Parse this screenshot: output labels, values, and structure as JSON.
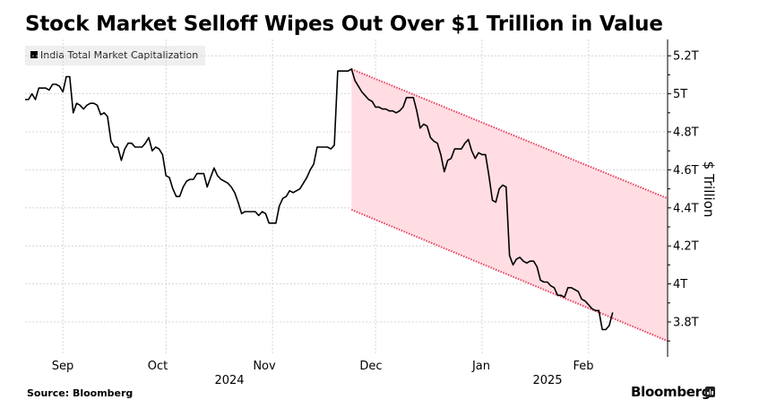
{
  "header": {
    "title": "Stock Market Selloff Wipes Out Over $1 Trillion in Value"
  },
  "legend": {
    "label": "India Total Market Capitalization"
  },
  "footer": {
    "source": "Source: Bloomberg",
    "brand": "Bloomberg"
  },
  "colors": {
    "line": "#000000",
    "channel_fill": "#ffdde3",
    "channel_edge": "#e8405e",
    "grid": "#cccccc"
  },
  "chart_data": {
    "type": "line",
    "title": "Stock Market Selloff Wipes Out Over $1 Trillion in Value",
    "xlabel": "",
    "ylabel": "$ Trillion",
    "ylim": [
      3.65,
      5.25
    ],
    "y_ticks": [
      5.2,
      5.0,
      4.8,
      4.6,
      4.4,
      4.2,
      4.0,
      3.8
    ],
    "y_tick_labels": [
      "5.2T",
      "5T",
      "4.8T",
      "4.6T",
      "4.4T",
      "4.2T",
      "4T",
      "3.8T"
    ],
    "x_months": [
      "Sep",
      "Oct",
      "Nov",
      "Dec",
      "Jan",
      "Feb"
    ],
    "x_years": [
      "2024",
      "2025"
    ],
    "x_range_days": [
      0,
      187
    ],
    "month_start_days": [
      11,
      41,
      72,
      102,
      133,
      164
    ],
    "grid": true,
    "legend_position": "top-left",
    "series": [
      {
        "name": "India Total Market Capitalization",
        "points": [
          [
            0,
            4.97
          ],
          [
            1,
            4.97
          ],
          [
            2,
            5.0
          ],
          [
            3,
            4.97
          ],
          [
            4,
            5.03
          ],
          [
            5,
            5.03
          ],
          [
            6,
            5.03
          ],
          [
            7,
            5.02
          ],
          [
            8,
            5.05
          ],
          [
            9,
            5.05
          ],
          [
            10,
            5.04
          ],
          [
            11,
            5.01
          ],
          [
            12,
            5.09
          ],
          [
            13,
            5.09
          ],
          [
            14,
            4.9
          ],
          [
            15,
            4.95
          ],
          [
            16,
            4.94
          ],
          [
            17,
            4.92
          ],
          [
            18,
            4.94
          ],
          [
            19,
            4.95
          ],
          [
            20,
            4.95
          ],
          [
            21,
            4.94
          ],
          [
            22,
            4.89
          ],
          [
            23,
            4.9
          ],
          [
            24,
            4.88
          ],
          [
            25,
            4.75
          ],
          [
            26,
            4.72
          ],
          [
            27,
            4.72
          ],
          [
            28,
            4.65
          ],
          [
            29,
            4.71
          ],
          [
            30,
            4.74
          ],
          [
            31,
            4.74
          ],
          [
            32,
            4.72
          ],
          [
            33,
            4.72
          ],
          [
            34,
            4.72
          ],
          [
            35,
            4.74
          ],
          [
            36,
            4.77
          ],
          [
            37,
            4.7
          ],
          [
            38,
            4.72
          ],
          [
            39,
            4.71
          ],
          [
            40,
            4.68
          ],
          [
            41,
            4.57
          ],
          [
            42,
            4.56
          ],
          [
            43,
            4.5
          ],
          [
            44,
            4.46
          ],
          [
            45,
            4.46
          ],
          [
            46,
            4.51
          ],
          [
            47,
            4.54
          ],
          [
            48,
            4.55
          ],
          [
            49,
            4.55
          ],
          [
            50,
            4.58
          ],
          [
            51,
            4.58
          ],
          [
            52,
            4.58
          ],
          [
            53,
            4.51
          ],
          [
            54,
            4.56
          ],
          [
            55,
            4.61
          ],
          [
            56,
            4.57
          ],
          [
            57,
            4.55
          ],
          [
            58,
            4.54
          ],
          [
            59,
            4.53
          ],
          [
            60,
            4.51
          ],
          [
            61,
            4.48
          ],
          [
            62,
            4.43
          ],
          [
            63,
            4.37
          ],
          [
            64,
            4.38
          ],
          [
            65,
            4.38
          ],
          [
            66,
            4.38
          ],
          [
            67,
            4.38
          ],
          [
            68,
            4.36
          ],
          [
            69,
            4.38
          ],
          [
            70,
            4.37
          ],
          [
            71,
            4.32
          ],
          [
            72,
            4.32
          ],
          [
            73,
            4.32
          ],
          [
            74,
            4.41
          ],
          [
            75,
            4.45
          ],
          [
            76,
            4.46
          ],
          [
            77,
            4.49
          ],
          [
            78,
            4.48
          ],
          [
            79,
            4.49
          ],
          [
            80,
            4.5
          ],
          [
            81,
            4.53
          ],
          [
            82,
            4.56
          ],
          [
            83,
            4.6
          ],
          [
            84,
            4.63
          ],
          [
            85,
            4.72
          ],
          [
            86,
            4.72
          ],
          [
            87,
            4.72
          ],
          [
            88,
            4.72
          ],
          [
            89,
            4.71
          ],
          [
            90,
            4.73
          ],
          [
            91,
            5.12
          ],
          [
            92,
            5.12
          ],
          [
            93,
            5.12
          ],
          [
            94,
            5.12
          ],
          [
            95,
            5.13
          ],
          [
            96,
            5.07
          ],
          [
            97,
            5.04
          ],
          [
            98,
            5.01
          ],
          [
            99,
            4.99
          ],
          [
            100,
            4.97
          ],
          [
            101,
            4.96
          ],
          [
            102,
            4.93
          ],
          [
            103,
            4.93
          ],
          [
            104,
            4.92
          ],
          [
            105,
            4.92
          ],
          [
            106,
            4.91
          ],
          [
            107,
            4.91
          ],
          [
            108,
            4.9
          ],
          [
            109,
            4.91
          ],
          [
            110,
            4.93
          ],
          [
            111,
            4.98
          ],
          [
            112,
            4.98
          ],
          [
            113,
            4.98
          ],
          [
            114,
            4.91
          ],
          [
            115,
            4.82
          ],
          [
            116,
            4.84
          ],
          [
            117,
            4.83
          ],
          [
            118,
            4.77
          ],
          [
            119,
            4.75
          ],
          [
            120,
            4.74
          ],
          [
            121,
            4.68
          ],
          [
            122,
            4.59
          ],
          [
            123,
            4.65
          ],
          [
            124,
            4.66
          ],
          [
            125,
            4.71
          ],
          [
            126,
            4.71
          ],
          [
            127,
            4.71
          ],
          [
            128,
            4.74
          ],
          [
            129,
            4.76
          ],
          [
            130,
            4.7
          ],
          [
            131,
            4.66
          ],
          [
            132,
            4.69
          ],
          [
            133,
            4.68
          ],
          [
            134,
            4.68
          ],
          [
            135,
            4.57
          ],
          [
            136,
            4.44
          ],
          [
            137,
            4.43
          ],
          [
            138,
            4.5
          ],
          [
            139,
            4.52
          ],
          [
            140,
            4.51
          ],
          [
            141,
            4.15
          ],
          [
            142,
            4.1
          ],
          [
            143,
            4.13
          ],
          [
            144,
            4.14
          ],
          [
            145,
            4.12
          ],
          [
            146,
            4.11
          ],
          [
            147,
            4.12
          ],
          [
            148,
            4.12
          ],
          [
            149,
            4.09
          ],
          [
            150,
            4.02
          ],
          [
            151,
            4.01
          ],
          [
            152,
            4.01
          ],
          [
            153,
            3.99
          ],
          [
            154,
            3.98
          ],
          [
            155,
            3.94
          ],
          [
            156,
            3.94
          ],
          [
            157,
            3.93
          ],
          [
            158,
            3.98
          ],
          [
            159,
            3.98
          ],
          [
            160,
            3.97
          ],
          [
            161,
            3.96
          ],
          [
            162,
            3.92
          ],
          [
            163,
            3.91
          ],
          [
            164,
            3.89
          ],
          [
            165,
            3.87
          ],
          [
            166,
            3.86
          ],
          [
            167,
            3.86
          ],
          [
            168,
            3.76
          ],
          [
            169,
            3.76
          ],
          [
            170,
            3.78
          ],
          [
            171,
            3.85
          ]
        ]
      }
    ],
    "annotations": [
      {
        "type": "downtrend-channel",
        "start_day": 95,
        "end_day": 187,
        "upper": [
          5.13,
          4.45
        ],
        "lower": [
          4.39,
          3.7
        ]
      }
    ]
  }
}
